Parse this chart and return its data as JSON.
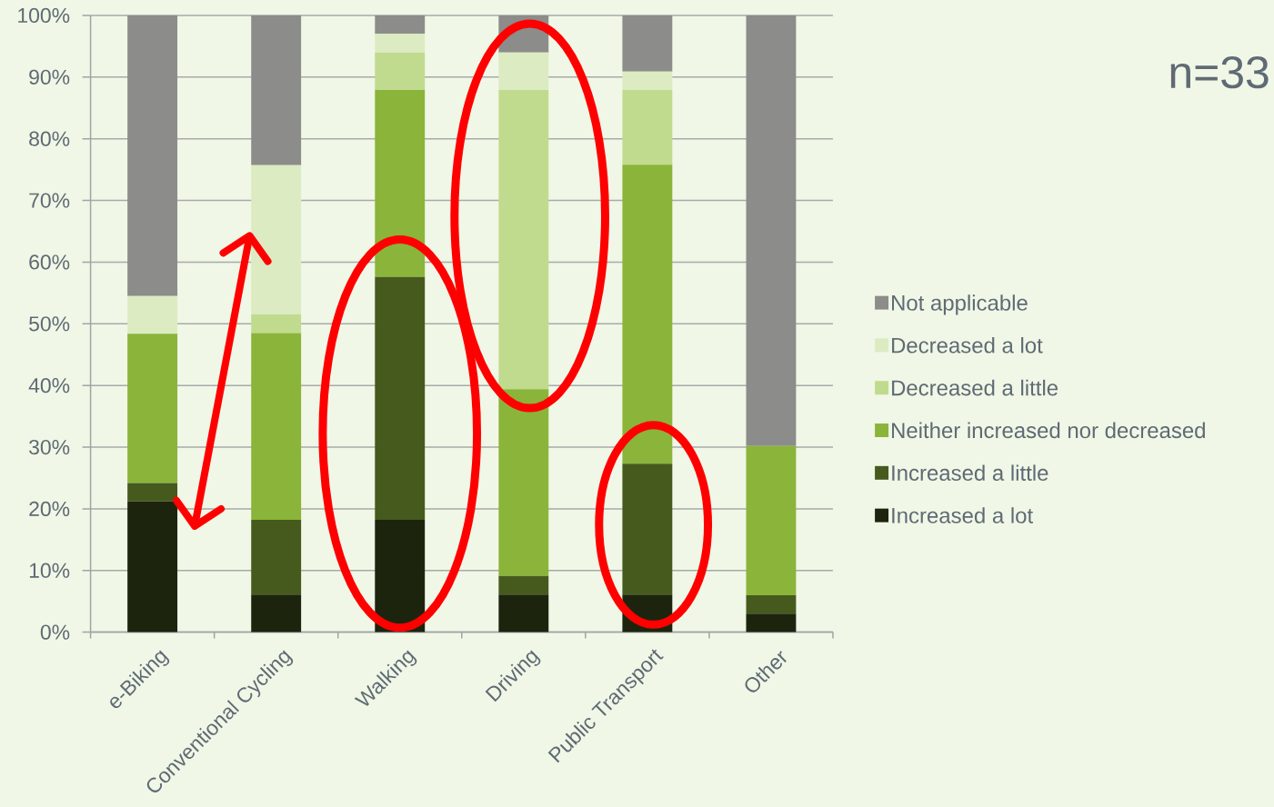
{
  "chart_data": {
    "type": "bar",
    "stacked": true,
    "categories": [
      "e-Biking",
      "Conventional Cycling",
      "Walking",
      "Driving",
      "Public Transport",
      "Other"
    ],
    "series": [
      {
        "name": "Increased a lot",
        "color": "#1c240e",
        "values": [
          21.2,
          6.1,
          18.2,
          6.1,
          6.1,
          3.0
        ]
      },
      {
        "name": "Increased a little",
        "color": "#465a1e",
        "values": [
          3.0,
          12.1,
          39.4,
          3.0,
          21.2,
          3.0
        ]
      },
      {
        "name": "Neither increased nor decreased",
        "color": "#8bb43a",
        "values": [
          24.2,
          30.3,
          30.3,
          30.3,
          48.5,
          24.2
        ]
      },
      {
        "name": "Decreased a little",
        "color": "#c0db8e",
        "values": [
          0,
          3.0,
          6.1,
          48.5,
          12.1,
          0
        ]
      },
      {
        "name": "Decreased a lot",
        "color": "#dcebc2",
        "values": [
          6.1,
          24.2,
          3.0,
          6.1,
          3.0,
          0
        ]
      },
      {
        "name": "Not applicable",
        "color": "#8c8c8a",
        "values": [
          45.5,
          24.3,
          3.0,
          6.0,
          9.1,
          69.8
        ]
      }
    ],
    "ylim": [
      0,
      100
    ],
    "yticks": [
      {
        "value": 0,
        "label": "0%"
      },
      {
        "value": 10,
        "label": "10%"
      },
      {
        "value": 20,
        "label": "20%"
      },
      {
        "value": 30,
        "label": "30%"
      },
      {
        "value": 40,
        "label": "40%"
      },
      {
        "value": 50,
        "label": "50%"
      },
      {
        "value": 60,
        "label": "60%"
      },
      {
        "value": 70,
        "label": "70%"
      },
      {
        "value": 80,
        "label": "80%"
      },
      {
        "value": 90,
        "label": "90%"
      },
      {
        "value": 100,
        "label": "100%"
      }
    ],
    "grid": "y",
    "legend": "right",
    "annotations": [
      "n=33"
    ]
  }
}
